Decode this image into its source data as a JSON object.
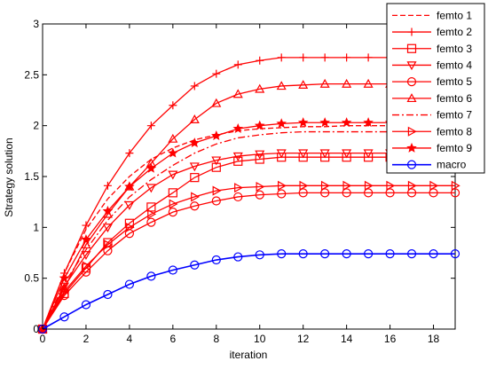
{
  "chart_data": {
    "type": "line",
    "xlabel": "iteration",
    "ylabel": "Strategy solution",
    "xlim": [
      0,
      19
    ],
    "ylim": [
      0,
      3
    ],
    "xticks": [
      0,
      2,
      4,
      6,
      8,
      10,
      12,
      14,
      16,
      18
    ],
    "yticks": [
      0,
      0.5,
      1,
      1.5,
      2,
      2.5,
      3
    ],
    "xtick_labels": [
      "0",
      "2",
      "4",
      "6",
      "8",
      "10",
      "12",
      "14",
      "16",
      "18"
    ],
    "ytick_labels": [
      "0",
      "0.5",
      "1",
      "1.5",
      "2",
      "2.5",
      "3"
    ],
    "grid": false,
    "legend_position": "top-right",
    "x": [
      0,
      1,
      2,
      3,
      4,
      5,
      6,
      7,
      8,
      9,
      10,
      11,
      12,
      13,
      14,
      15,
      16,
      17,
      18,
      19
    ],
    "series": [
      {
        "name": "femto 1",
        "color": "#ff0000",
        "dash": "dashed",
        "marker": "none",
        "values": [
          0,
          0.55,
          0.98,
          1.28,
          1.5,
          1.67,
          1.78,
          1.86,
          1.91,
          1.95,
          1.97,
          1.98,
          1.99,
          1.99,
          2.0,
          2.0,
          2.0,
          2.0,
          2.0,
          2.0
        ]
      },
      {
        "name": "femto 2",
        "color": "#ff0000",
        "dash": "solid",
        "marker": "plus",
        "values": [
          0,
          0.55,
          1.02,
          1.41,
          1.73,
          2.0,
          2.2,
          2.39,
          2.51,
          2.6,
          2.64,
          2.67,
          2.67,
          2.67,
          2.67,
          2.67,
          2.67,
          2.67,
          2.67,
          2.67
        ]
      },
      {
        "name": "femto 3",
        "color": "#ff0000",
        "dash": "solid",
        "marker": "square",
        "values": [
          0,
          0.35,
          0.6,
          0.85,
          1.04,
          1.2,
          1.34,
          1.49,
          1.59,
          1.65,
          1.67,
          1.69,
          1.69,
          1.69,
          1.69,
          1.69,
          1.69,
          1.69,
          1.69,
          1.69
        ]
      },
      {
        "name": "femto 4",
        "color": "#ff0000",
        "dash": "solid",
        "marker": "triangle-down",
        "values": [
          0,
          0.42,
          0.73,
          1.0,
          1.22,
          1.39,
          1.52,
          1.6,
          1.66,
          1.7,
          1.72,
          1.73,
          1.73,
          1.73,
          1.73,
          1.73,
          1.73,
          1.73,
          1.73,
          1.73
        ]
      },
      {
        "name": "femto 5",
        "color": "#ff0000",
        "dash": "solid",
        "marker": "circle",
        "values": [
          0,
          0.33,
          0.56,
          0.77,
          0.94,
          1.05,
          1.15,
          1.21,
          1.26,
          1.3,
          1.32,
          1.33,
          1.34,
          1.34,
          1.34,
          1.34,
          1.34,
          1.34,
          1.34,
          1.34
        ]
      },
      {
        "name": "femto 6",
        "color": "#ff0000",
        "dash": "solid",
        "marker": "triangle-up",
        "values": [
          0,
          0.4,
          0.83,
          1.13,
          1.4,
          1.63,
          1.87,
          2.06,
          2.22,
          2.31,
          2.36,
          2.39,
          2.4,
          2.41,
          2.41,
          2.41,
          2.41,
          2.41,
          2.41,
          2.41
        ]
      },
      {
        "name": "femto 7",
        "color": "#ff0000",
        "dash": "dashdot",
        "marker": "none",
        "values": [
          0,
          0.45,
          0.78,
          1.07,
          1.3,
          1.47,
          1.61,
          1.73,
          1.82,
          1.88,
          1.91,
          1.93,
          1.94,
          1.94,
          1.94,
          1.94,
          1.94,
          1.94,
          1.94,
          1.94
        ]
      },
      {
        "name": "femto 8",
        "color": "#ff0000",
        "dash": "solid",
        "marker": "triangle-right",
        "values": [
          0,
          0.37,
          0.62,
          0.83,
          1.0,
          1.13,
          1.23,
          1.3,
          1.36,
          1.39,
          1.4,
          1.41,
          1.41,
          1.41,
          1.41,
          1.41,
          1.41,
          1.41,
          1.41,
          1.41
        ]
      },
      {
        "name": "femto 9",
        "color": "#ff0000",
        "dash": "solid",
        "marker": "star",
        "values": [
          0,
          0.5,
          0.88,
          1.16,
          1.4,
          1.58,
          1.73,
          1.83,
          1.9,
          1.97,
          2.0,
          2.02,
          2.03,
          2.03,
          2.03,
          2.03,
          2.03,
          2.03,
          2.03,
          2.03
        ]
      },
      {
        "name": "macro",
        "color": "#0000ff",
        "dash": "solid",
        "marker": "circle",
        "values": [
          0,
          0.12,
          0.24,
          0.34,
          0.44,
          0.52,
          0.58,
          0.63,
          0.68,
          0.71,
          0.73,
          0.74,
          0.74,
          0.74,
          0.74,
          0.74,
          0.74,
          0.74,
          0.74,
          0.74
        ]
      }
    ]
  }
}
